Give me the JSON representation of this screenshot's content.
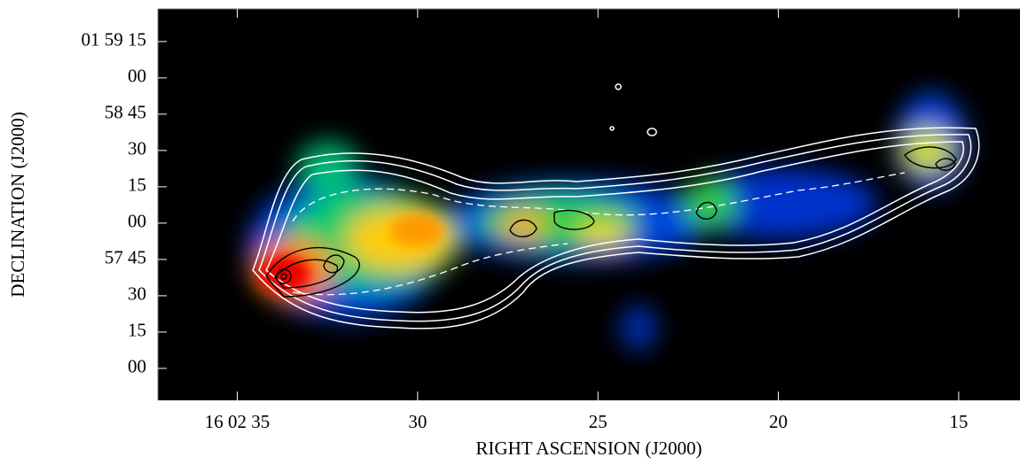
{
  "chart_data": {
    "type": "image",
    "xlabel": "RIGHT ASCENSION (J2000)",
    "ylabel": "DECLINATION (J2000)",
    "xlim": [
      37.2,
      13.3
    ],
    "xticks": [
      {
        "value": 35,
        "label": "16 02 35"
      },
      30,
      25,
      20,
      15
    ],
    "ylim": [
      -13.2,
      148.5
    ],
    "yticks": [
      {
        "value": 0,
        "label": "00"
      },
      15,
      30,
      {
        "value": 45,
        "label": "57 45"
      },
      {
        "value": 60,
        "label": "00"
      },
      {
        "value": 75,
        "label": "15"
      },
      {
        "value": 90,
        "label": "30"
      },
      {
        "value": 105,
        "label": "58 45"
      },
      {
        "value": 120,
        "label": "00"
      },
      {
        "value": 135,
        "label": "01 59 15"
      }
    ]
  }
}
